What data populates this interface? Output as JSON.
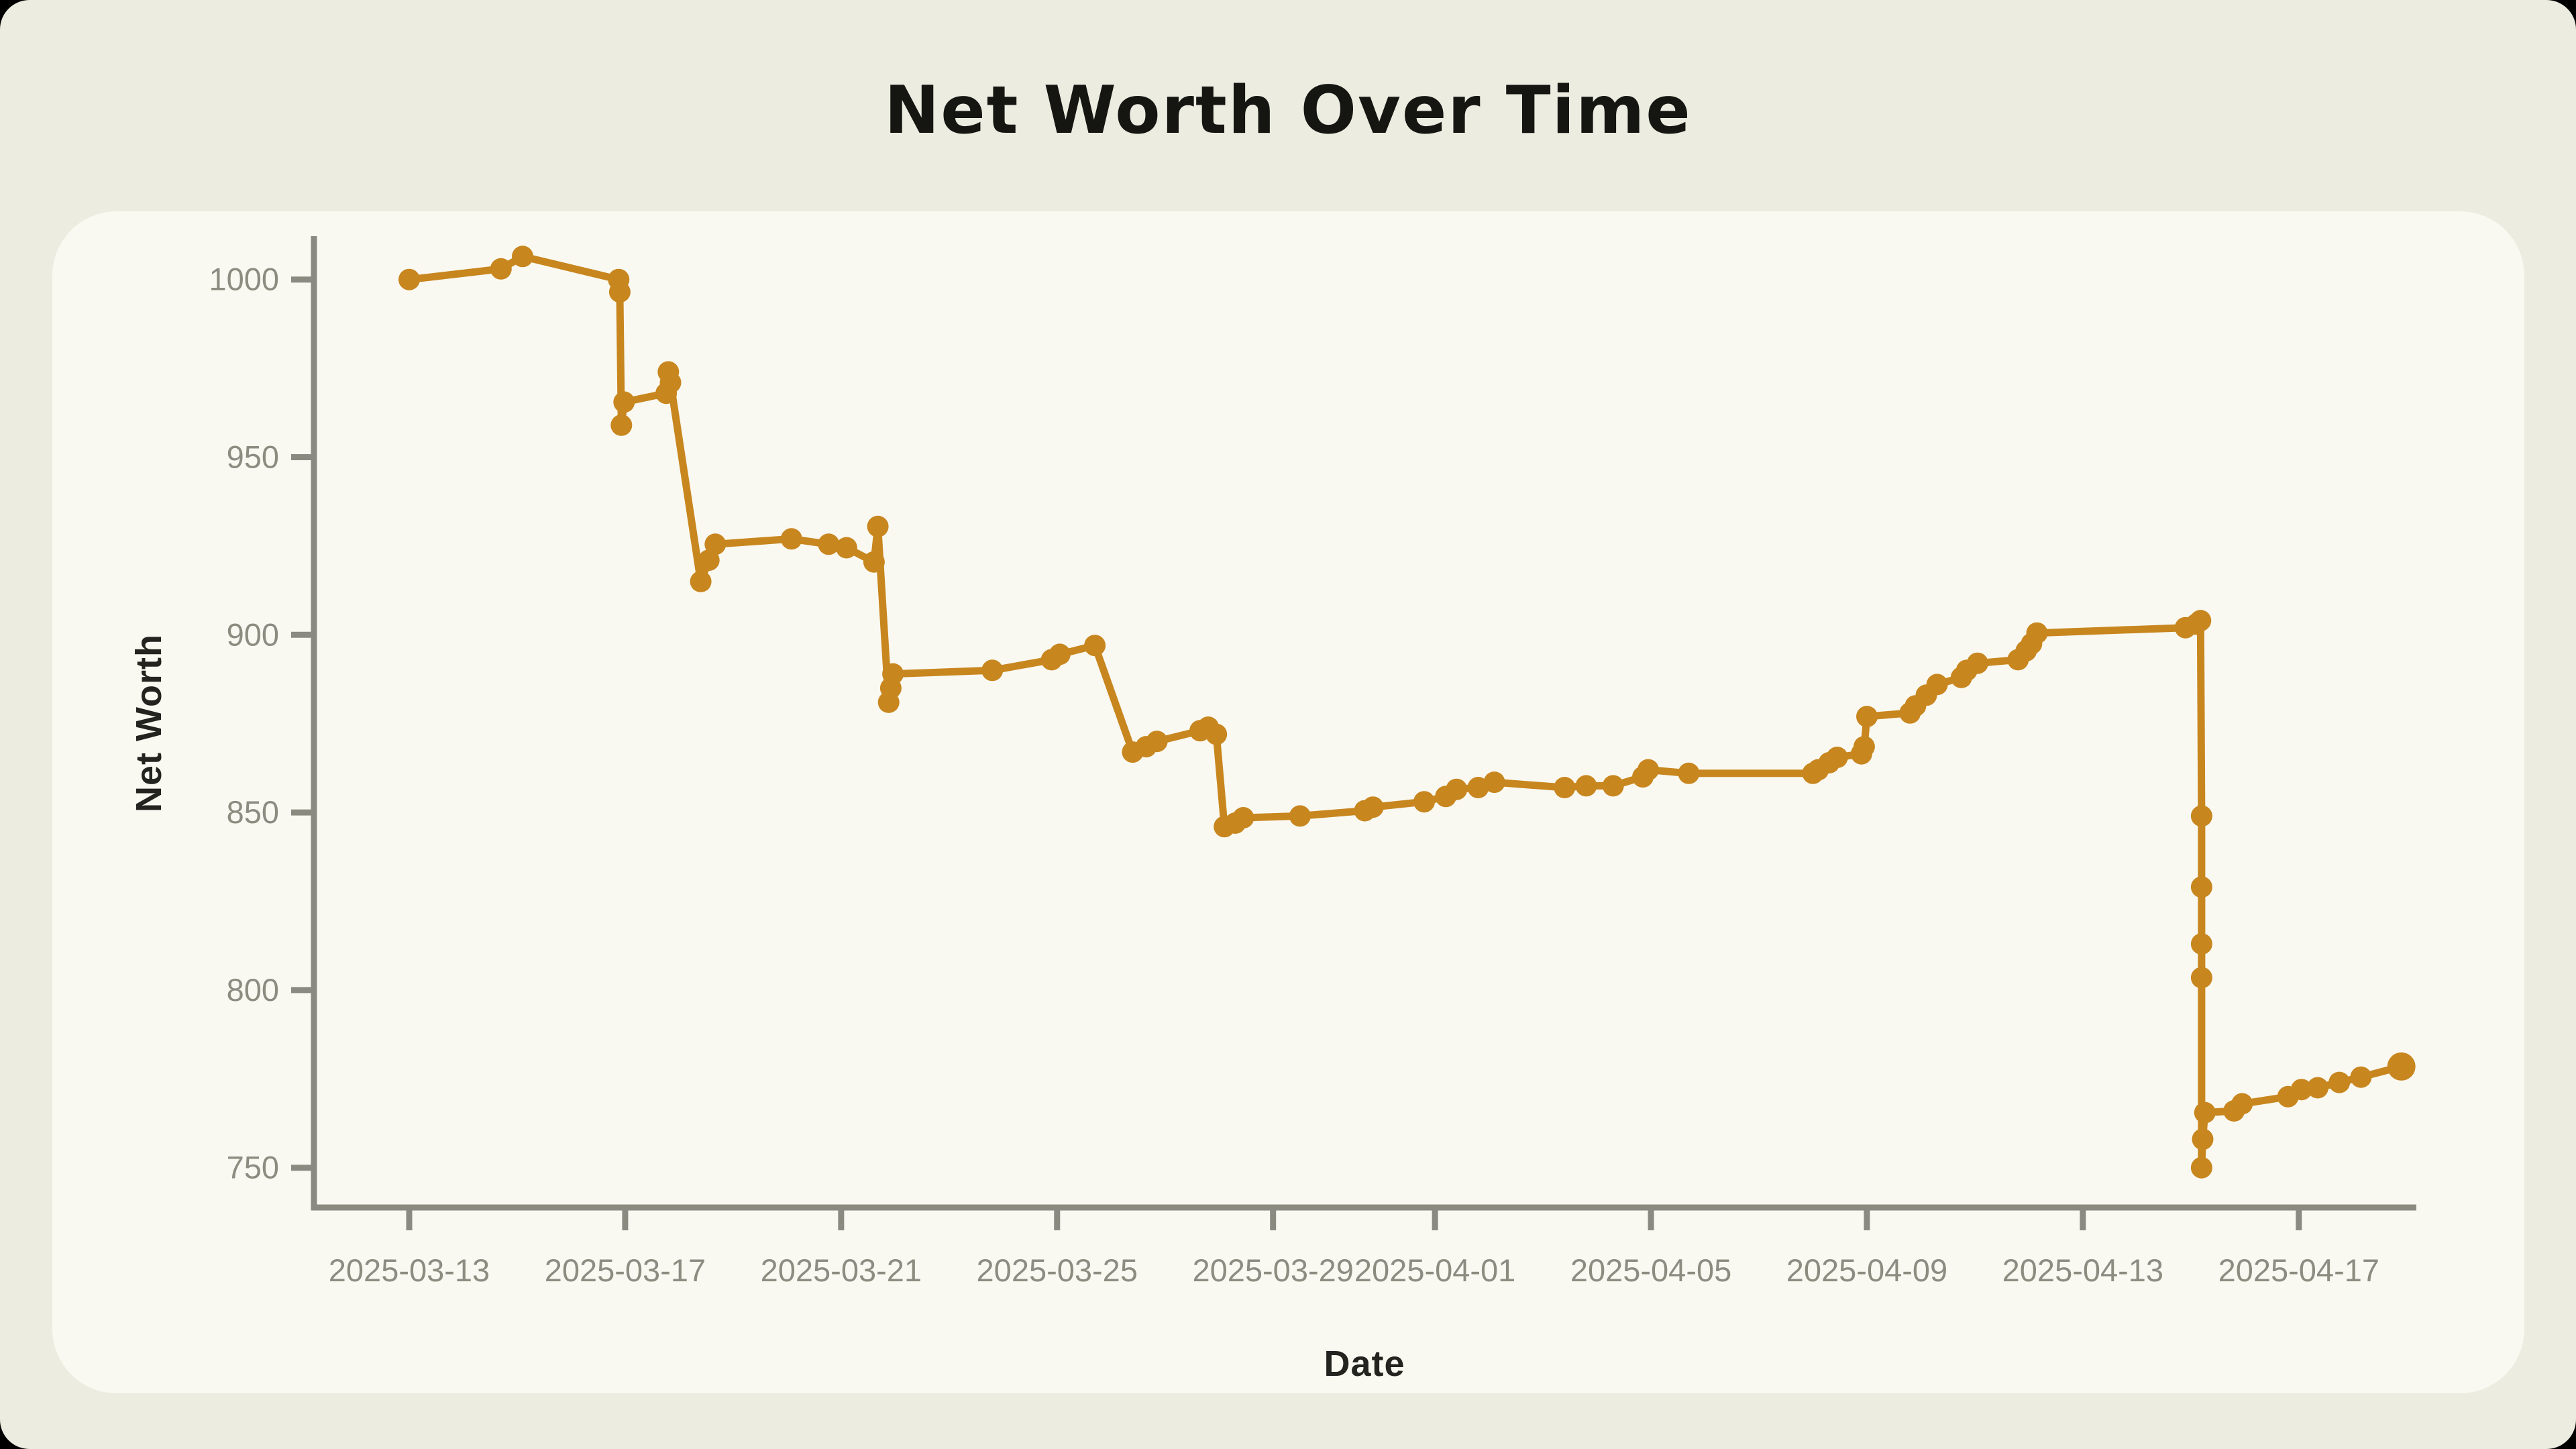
{
  "page": {
    "title": "Net Worth Over Time"
  },
  "chart_data": {
    "type": "line",
    "title": "Net Worth Over Time",
    "xlabel": "Date",
    "ylabel": "Net Worth",
    "start_date": "2025-03-13",
    "x_unit": "days_since_2025-03-13",
    "grid": false,
    "legend": false,
    "line_color": "#C8861F",
    "axis_color": "#8A8A80",
    "tick_label_color": "#8C8C81",
    "panel_color": "#FAF9F1",
    "background_color": "#ECECE1",
    "ylim": [
      735,
      1015
    ],
    "y_ticks": [
      1000,
      950,
      900,
      850,
      800,
      750
    ],
    "x_ticks": [
      {
        "t": 0,
        "label": "2025-03-13"
      },
      {
        "t": 4,
        "label": "2025-03-17"
      },
      {
        "t": 8,
        "label": "2025-03-21"
      },
      {
        "t": 12,
        "label": "2025-03-25"
      },
      {
        "t": 16,
        "label": "2025-03-29"
      },
      {
        "t": 19,
        "label": "2025-04-01"
      },
      {
        "t": 23,
        "label": "2025-04-05"
      },
      {
        "t": 27,
        "label": "2025-04-09"
      },
      {
        "t": 31,
        "label": "2025-04-13"
      },
      {
        "t": 35,
        "label": "2025-04-17"
      }
    ],
    "points": [
      [
        0.0,
        1000
      ],
      [
        1.7,
        1003
      ],
      [
        2.1,
        1006.5
      ],
      [
        3.88,
        1000
      ],
      [
        3.9,
        996.5
      ],
      [
        3.93,
        959
      ],
      [
        3.98,
        965.5
      ],
      [
        4.76,
        968
      ],
      [
        4.8,
        974
      ],
      [
        4.84,
        971
      ],
      [
        5.4,
        915
      ],
      [
        5.55,
        921
      ],
      [
        5.67,
        925.5
      ],
      [
        7.08,
        927
      ],
      [
        7.77,
        925.5
      ],
      [
        8.1,
        924.5
      ],
      [
        8.61,
        920.5
      ],
      [
        8.68,
        930.5
      ],
      [
        8.88,
        881
      ],
      [
        8.92,
        885
      ],
      [
        8.96,
        889
      ],
      [
        10.8,
        890
      ],
      [
        11.9,
        893
      ],
      [
        12.05,
        894.5
      ],
      [
        12.7,
        897
      ],
      [
        13.4,
        867
      ],
      [
        13.65,
        868.5
      ],
      [
        13.85,
        870
      ],
      [
        14.65,
        873
      ],
      [
        14.8,
        874
      ],
      [
        14.95,
        872
      ],
      [
        15.1,
        846
      ],
      [
        15.3,
        847
      ],
      [
        15.45,
        848.5
      ],
      [
        16.5,
        849
      ],
      [
        17.7,
        850.5
      ],
      [
        17.85,
        851.5
      ],
      [
        18.8,
        853
      ],
      [
        19.2,
        854.5
      ],
      [
        19.4,
        856.5
      ],
      [
        19.8,
        857
      ],
      [
        20.1,
        858.5
      ],
      [
        21.4,
        857
      ],
      [
        21.8,
        857.5
      ],
      [
        22.3,
        857.5
      ],
      [
        22.85,
        860
      ],
      [
        22.95,
        862
      ],
      [
        23.7,
        861
      ],
      [
        26.0,
        861
      ],
      [
        26.1,
        862
      ],
      [
        26.3,
        864
      ],
      [
        26.45,
        865.5
      ],
      [
        26.9,
        866.5
      ],
      [
        26.95,
        868.5
      ],
      [
        27.0,
        877
      ],
      [
        27.8,
        878
      ],
      [
        27.9,
        880
      ],
      [
        28.1,
        883
      ],
      [
        28.3,
        886
      ],
      [
        28.75,
        888
      ],
      [
        28.85,
        890
      ],
      [
        29.05,
        892
      ],
      [
        29.8,
        893
      ],
      [
        29.95,
        895.5
      ],
      [
        30.05,
        897.5
      ],
      [
        30.15,
        900.5
      ],
      [
        32.9,
        902
      ],
      [
        33.1,
        903
      ],
      [
        33.18,
        904
      ],
      [
        33.2,
        849
      ],
      [
        33.2,
        829
      ],
      [
        33.2,
        813
      ],
      [
        33.2,
        803.5
      ],
      [
        33.2,
        750
      ],
      [
        33.22,
        758
      ],
      [
        33.26,
        765.5
      ],
      [
        33.8,
        766
      ],
      [
        33.95,
        768
      ],
      [
        34.8,
        770
      ],
      [
        35.05,
        772
      ],
      [
        35.35,
        772.5
      ],
      [
        35.75,
        774
      ],
      [
        36.15,
        775.5
      ],
      [
        36.9,
        778.5
      ]
    ]
  }
}
